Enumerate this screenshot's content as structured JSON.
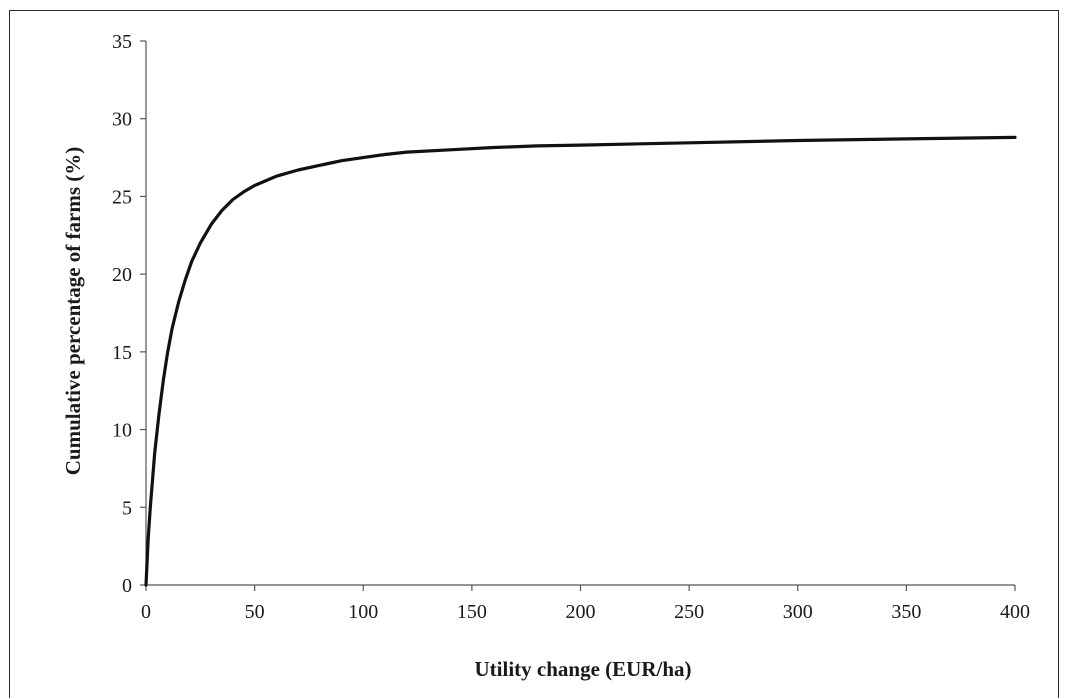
{
  "chart_data": {
    "type": "line",
    "title": "",
    "xlabel": "Utility change (EUR/ha)",
    "ylabel": "Cumulative percentage of farms (%)",
    "xlim": [
      0,
      400
    ],
    "ylim": [
      0,
      35
    ],
    "x_ticks": [
      "0",
      "50",
      "100",
      "150",
      "200",
      "250",
      "300",
      "350",
      "400"
    ],
    "y_ticks": [
      "0",
      "5",
      "10",
      "15",
      "20",
      "25",
      "30",
      "35"
    ],
    "grid": false,
    "legend": "none",
    "line_color": "#111111",
    "series": [
      {
        "x": [
          0,
          1,
          2,
          4,
          6,
          8,
          10,
          12,
          15,
          18,
          21,
          25,
          30,
          35,
          40,
          45,
          50,
          55,
          60,
          70,
          80,
          85,
          90,
          100,
          110,
          120,
          140,
          160,
          180,
          200,
          250,
          300,
          350,
          400
        ],
        "values": [
          0,
          3,
          5,
          8.5,
          11,
          13.2,
          15,
          16.5,
          18.2,
          19.6,
          20.8,
          22,
          23.2,
          24.1,
          24.8,
          25.3,
          25.7,
          26,
          26.3,
          26.7,
          27,
          27.15,
          27.3,
          27.5,
          27.7,
          27.85,
          28.0,
          28.15,
          28.25,
          28.3,
          28.45,
          28.6,
          28.7,
          28.8
        ]
      }
    ]
  }
}
